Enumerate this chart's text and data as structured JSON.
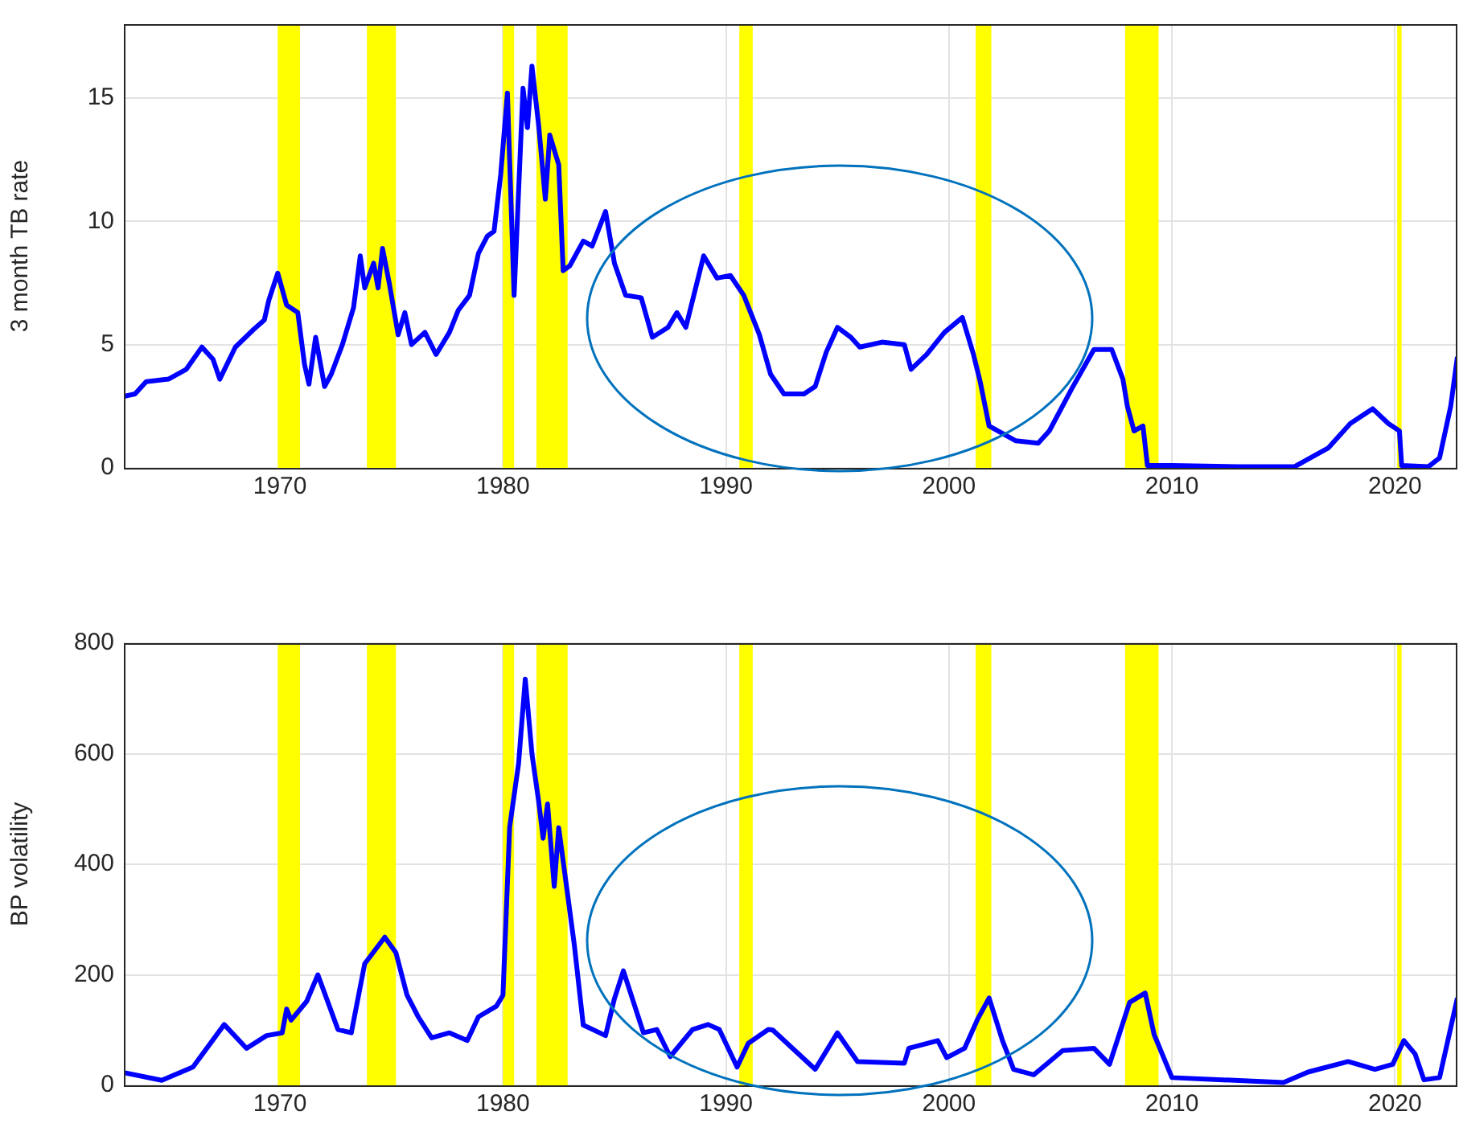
{
  "chart_data": [
    {
      "type": "line",
      "ylabel": "3 month TB rate",
      "xlim": [
        1963,
        2022.8
      ],
      "xticks": [
        1970,
        1980,
        1990,
        2000,
        2010,
        2020
      ],
      "ylim": [
        0,
        18
      ],
      "yticks": [
        0,
        5,
        10,
        15
      ],
      "grid": true,
      "legend": false,
      "x": [
        1963.0,
        1963.5,
        1964,
        1965,
        1965.8,
        1966.5,
        1967,
        1967.3,
        1968,
        1968.8,
        1969.3,
        1969.5,
        1969.9,
        1970.3,
        1970.8,
        1971.1,
        1971.3,
        1971.6,
        1972.0,
        1972.3,
        1972.8,
        1973.3,
        1973.6,
        1973.8,
        1974.2,
        1974.4,
        1974.6,
        1974.9,
        1975.3,
        1975.6,
        1975.9,
        1976.5,
        1977.0,
        1977.6,
        1978.0,
        1978.5,
        1978.9,
        1979.3,
        1979.6,
        1979.9,
        1980.2,
        1980.5,
        1980.9,
        1981.1,
        1981.3,
        1981.6,
        1981.9,
        1982.1,
        1982.5,
        1982.7,
        1983.0,
        1983.6,
        1984.0,
        1984.6,
        1985.0,
        1985.5,
        1986.2,
        1986.7,
        1987.4,
        1987.8,
        1988.2,
        1989.0,
        1989.6,
        1990.2,
        1990.8,
        1991.5,
        1992.0,
        1992.6,
        1993.5,
        1994.0,
        1994.5,
        1995.0,
        1995.6,
        1996.0,
        1997,
        1998,
        1998.3,
        1999,
        1999.8,
        2000.6,
        2001.1,
        2001.4,
        2001.8,
        2003,
        2004,
        2004.5,
        2005.5,
        2006.5,
        2007.3,
        2007.8,
        2008.0,
        2008.3,
        2008.7,
        2008.9,
        2010,
        2013,
        2015.5,
        2016.2,
        2017,
        2018,
        2019,
        2019.7,
        2020.2,
        2020.3,
        2021.5,
        2022.0,
        2022.5,
        2022.8
      ],
      "series": [
        {
          "color": "#0000ff",
          "values": [
            2.9,
            3.0,
            3.5,
            3.6,
            4.0,
            4.9,
            4.4,
            3.6,
            4.9,
            5.6,
            6.0,
            6.8,
            7.9,
            6.6,
            6.3,
            4.2,
            3.4,
            5.3,
            3.3,
            3.8,
            5.0,
            6.5,
            8.6,
            7.3,
            8.3,
            7.3,
            8.9,
            7.5,
            5.4,
            6.3,
            5.0,
            5.5,
            4.6,
            5.5,
            6.4,
            7.0,
            8.7,
            9.4,
            9.6,
            11.9,
            15.2,
            7.0,
            15.4,
            13.8,
            16.3,
            13.9,
            10.9,
            13.5,
            12.3,
            8.0,
            8.2,
            9.2,
            9.0,
            10.4,
            8.3,
            7.0,
            6.9,
            5.3,
            5.7,
            6.3,
            5.7,
            8.6,
            7.7,
            7.8,
            7.0,
            5.4,
            3.8,
            3.0,
            3.0,
            3.3,
            4.7,
            5.7,
            5.3,
            4.9,
            5.1,
            5.0,
            4.0,
            4.6,
            5.5,
            6.1,
            4.6,
            3.5,
            1.7,
            1.1,
            1.0,
            1.5,
            3.2,
            4.8,
            4.8,
            3.6,
            2.5,
            1.5,
            1.7,
            0.1,
            0.1,
            0.05,
            0.05,
            0.4,
            0.8,
            1.8,
            2.4,
            1.8,
            1.5,
            0.1,
            0.05,
            0.4,
            2.5,
            4.5
          ]
        }
      ],
      "bands": [
        {
          "axis": "x",
          "from": 1969.9,
          "to": 1970.9,
          "color": "#ffff00"
        },
        {
          "axis": "x",
          "from": 1973.9,
          "to": 1975.2,
          "color": "#ffff00"
        },
        {
          "axis": "x",
          "from": 1980.0,
          "to": 1980.5,
          "color": "#ffff00"
        },
        {
          "axis": "x",
          "from": 1981.5,
          "to": 1982.9,
          "color": "#ffff00"
        },
        {
          "axis": "x",
          "from": 1990.6,
          "to": 1991.2,
          "color": "#ffff00"
        },
        {
          "axis": "x",
          "from": 2001.2,
          "to": 2001.9,
          "color": "#ffff00"
        },
        {
          "axis": "x",
          "from": 2007.9,
          "to": 2009.4,
          "color": "#ffff00"
        },
        {
          "axis": "x",
          "from": 2020.1,
          "to": 2020.3,
          "color": "#ffff00"
        }
      ]
    },
    {
      "type": "line",
      "ylabel": "BP volatility",
      "xlim": [
        1963,
        2022.8
      ],
      "xticks": [
        1970,
        1980,
        1990,
        2000,
        2010,
        2020
      ],
      "ylim": [
        0,
        800
      ],
      "yticks": [
        0,
        200,
        400,
        600,
        800
      ],
      "grid": true,
      "legend": false,
      "x": [
        1963.0,
        1964.7,
        1966.1,
        1967.5,
        1968.5,
        1969.4,
        1970.1,
        1970.3,
        1970.5,
        1971.2,
        1971.7,
        1972.6,
        1973.2,
        1973.8,
        1974.7,
        1975.2,
        1975.7,
        1976.2,
        1976.8,
        1977.6,
        1978.4,
        1978.9,
        1979.7,
        1980.0,
        1980.3,
        1980.7,
        1981.0,
        1981.3,
        1981.6,
        1981.8,
        1982.0,
        1982.3,
        1982.5,
        1983.2,
        1983.6,
        1984.6,
        1985.0,
        1985.4,
        1986.3,
        1986.9,
        1987.5,
        1988.5,
        1989.2,
        1989.7,
        1990.5,
        1991.0,
        1991.9,
        1992.1,
        1994.0,
        1995.0,
        1995.9,
        1998.0,
        1998.2,
        1999.5,
        1999.9,
        2000.7,
        2001.3,
        2001.8,
        2002.4,
        2002.9,
        2003.8,
        2005.1,
        2006.5,
        2007.2,
        2008.1,
        2008.8,
        2009.2,
        2010.0,
        2015,
        2016.1,
        2017.9,
        2019.1,
        2019.9,
        2020.4,
        2020.9,
        2021.3,
        2022.0,
        2022.8
      ],
      "series": [
        {
          "color": "#0000ff",
          "values": [
            23,
            9,
            33,
            110,
            67,
            90,
            95,
            138,
            118,
            152,
            200,
            101,
            95,
            220,
            268,
            240,
            163,
            124,
            86,
            95,
            81,
            124,
            143,
            163,
            467,
            582,
            735,
            600,
            514,
            447,
            509,
            360,
            466,
            254,
            109,
            90,
            157,
            207,
            95,
            101,
            52,
            101,
            110,
            101,
            33,
            76,
            101,
            100,
            29,
            95,
            43,
            40,
            67,
            81,
            50,
            67,
            121,
            158,
            81,
            29,
            19,
            63,
            67,
            38,
            150,
            167,
            92,
            14,
            5,
            24,
            43,
            29,
            38,
            81,
            57,
            10,
            14,
            158
          ]
        }
      ],
      "bands": [
        {
          "axis": "x",
          "from": 1969.9,
          "to": 1970.9,
          "color": "#ffff00"
        },
        {
          "axis": "x",
          "from": 1973.9,
          "to": 1975.2,
          "color": "#ffff00"
        },
        {
          "axis": "x",
          "from": 1980.0,
          "to": 1980.5,
          "color": "#ffff00"
        },
        {
          "axis": "x",
          "from": 1981.5,
          "to": 1982.9,
          "color": "#ffff00"
        },
        {
          "axis": "x",
          "from": 1990.6,
          "to": 1991.2,
          "color": "#ffff00"
        },
        {
          "axis": "x",
          "from": 2001.2,
          "to": 2001.9,
          "color": "#ffff00"
        },
        {
          "axis": "x",
          "from": 2007.9,
          "to": 2009.4,
          "color": "#ffff00"
        },
        {
          "axis": "x",
          "from": 2020.1,
          "to": 2020.3,
          "color": "#ffff00"
        }
      ]
    }
  ]
}
